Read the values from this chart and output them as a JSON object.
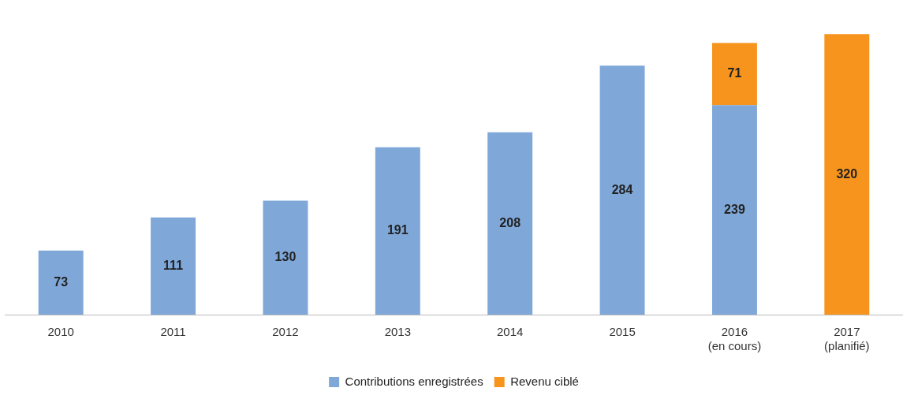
{
  "chart_data": {
    "type": "bar",
    "stacked": true,
    "data_labels": true,
    "legend": "bottom",
    "grid": false,
    "categories": [
      "2010",
      "2011",
      "2012",
      "2013",
      "2014",
      "2015",
      "2016\n(en cours)",
      "2017\n(planifié)"
    ],
    "series": [
      {
        "name": "Contributions enregistrées",
        "color": "#7fa8d9",
        "values": [
          73,
          111,
          130,
          191,
          208,
          284,
          239,
          null
        ]
      },
      {
        "name": "Revenu ciblé",
        "color": "#f7941d",
        "values": [
          null,
          null,
          null,
          null,
          null,
          null,
          71,
          320
        ]
      }
    ]
  }
}
